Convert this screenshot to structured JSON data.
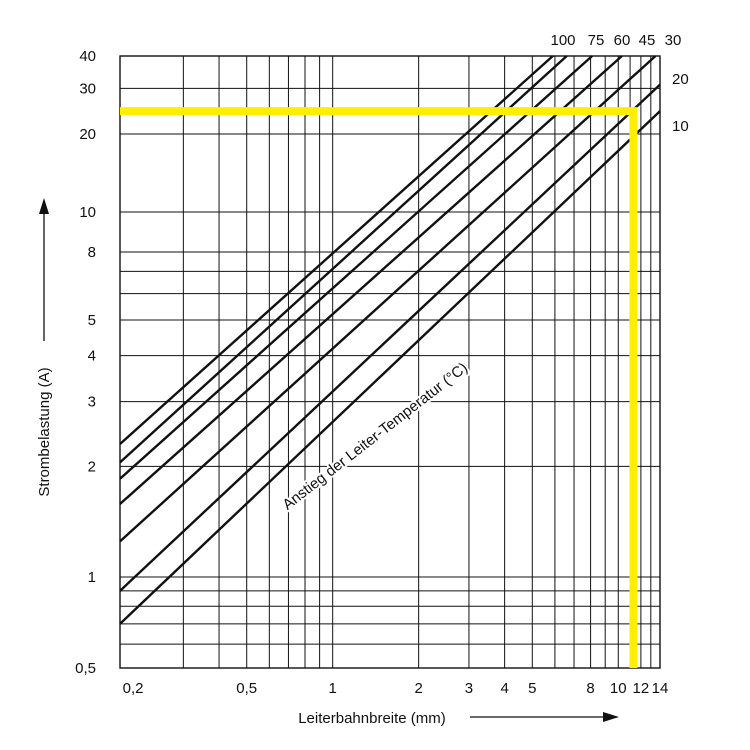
{
  "chart_data": {
    "type": "line",
    "title": "",
    "xlabel": "Leiterbahnbreite (mm)",
    "ylabel": "Strombelastung (A)",
    "x_scale": "log",
    "y_scale": "log",
    "xlim": [
      0.18,
      14
    ],
    "ylim": [
      0.5,
      40
    ],
    "grid": true,
    "x_tick_labels": [
      {
        "value": 0.2,
        "label": "0,2"
      },
      {
        "value": 0.5,
        "label": "0,5"
      },
      {
        "value": 1,
        "label": "1"
      },
      {
        "value": 2,
        "label": "2"
      },
      {
        "value": 3,
        "label": "3"
      },
      {
        "value": 4,
        "label": "4"
      },
      {
        "value": 5,
        "label": "5"
      },
      {
        "value": 8,
        "label": "8"
      },
      {
        "value": 10,
        "label": "10"
      },
      {
        "value": 12,
        "label": "12"
      },
      {
        "value": 14,
        "label": "14"
      }
    ],
    "y_tick_labels": [
      {
        "label": "0,5"
      },
      {
        "label": "1"
      },
      {
        "label": "2"
      },
      {
        "label": "3"
      },
      {
        "label": "4"
      },
      {
        "label": "5"
      },
      {
        "label": "8"
      },
      {
        "label": "10"
      },
      {
        "label": "20"
      },
      {
        "label": "30"
      },
      {
        "label": "40"
      }
    ],
    "series": [
      {
        "name": "100",
        "x": [
          0.18,
          5.9
        ],
        "y": [
          2.3,
          40
        ]
      },
      {
        "name": "75",
        "x": [
          0.18,
          6.6
        ],
        "y": [
          2.05,
          40
        ]
      },
      {
        "name": "60",
        "x": [
          0.18,
          8.1
        ],
        "y": [
          1.85,
          40
        ]
      },
      {
        "name": "45",
        "x": [
          0.18,
          10.3
        ],
        "y": [
          1.58,
          40
        ]
      },
      {
        "name": "30",
        "x": [
          0.18,
          13.5
        ],
        "y": [
          1.25,
          40
        ]
      },
      {
        "name": "20",
        "x": [
          0.18,
          14
        ],
        "y": [
          0.9,
          31
        ]
      },
      {
        "name": "10",
        "x": [
          0.18,
          14
        ],
        "y": [
          0.7,
          24.5
        ]
      }
    ],
    "highlight": {
      "color": "#ffee00",
      "y": 24.5,
      "x": 11.3
    },
    "annotation": "Anstieg der Leiter-Temperatur (°C)"
  }
}
